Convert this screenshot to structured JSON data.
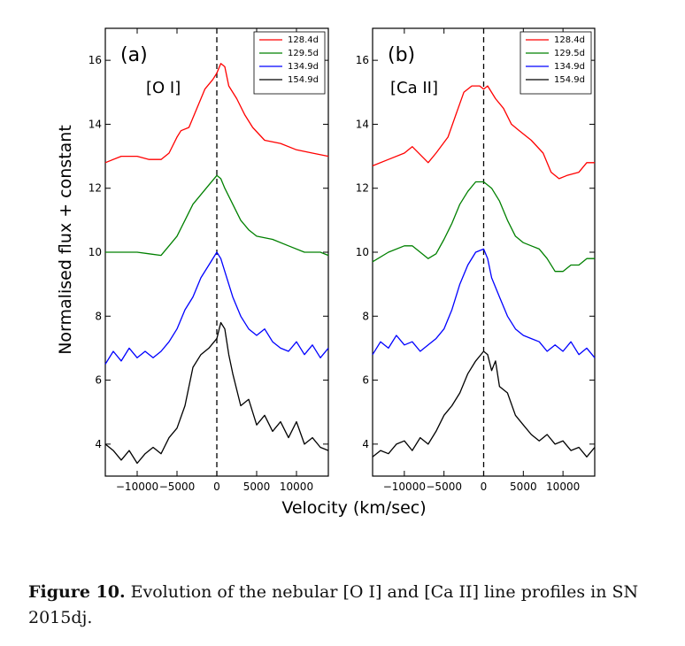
{
  "figure": {
    "ylabel": "Normalised flux + constant",
    "xlabel": "Velocity (km/sec)"
  },
  "caption": {
    "label": "Figure 10.",
    "text": "Evolution of the nebular [O I] and [Ca II] line profiles in SN 2015dj."
  },
  "chart_data": [
    {
      "type": "line",
      "panel_label": "(a)",
      "annotation": "[O I]",
      "xlim": [
        -14000,
        14000
      ],
      "ylim": [
        3,
        17
      ],
      "xticks": [
        -10000,
        -5000,
        0,
        5000,
        10000
      ],
      "xtick_labels": [
        "−10000",
        "−5000",
        "0",
        "5000",
        "10000"
      ],
      "yticks": [
        4,
        6,
        8,
        10,
        12,
        14,
        16
      ],
      "ytick_labels": [
        "4",
        "6",
        "8",
        "10",
        "12",
        "14",
        "16"
      ],
      "vline_x": 0,
      "legend_position": "top-right",
      "series": [
        {
          "name": "128.4d",
          "color": "#ff0000",
          "x": [
            -14000,
            -12000,
            -10000,
            -8500,
            -7000,
            -6000,
            -5000,
            -4500,
            -3500,
            -2500,
            -1500,
            -500,
            0,
            500,
            1000,
            1500,
            2500,
            3500,
            4500,
            6000,
            8000,
            10000,
            12000,
            14000
          ],
          "y": [
            12.8,
            13.0,
            13.0,
            12.9,
            12.9,
            13.1,
            13.6,
            13.8,
            13.9,
            14.5,
            15.1,
            15.4,
            15.6,
            15.9,
            15.8,
            15.2,
            14.8,
            14.3,
            13.9,
            13.5,
            13.4,
            13.2,
            13.1,
            13.0
          ]
        },
        {
          "name": "129.5d",
          "color": "#008000",
          "x": [
            -14000,
            -12000,
            -10000,
            -8500,
            -7000,
            -6000,
            -5000,
            -4000,
            -3000,
            -2000,
            -1000,
            0,
            500,
            1000,
            2000,
            3000,
            4000,
            5000,
            7000,
            9000,
            11000,
            13000,
            14000
          ],
          "y": [
            10.0,
            10.0,
            10.0,
            9.95,
            9.9,
            10.2,
            10.5,
            11.0,
            11.5,
            11.8,
            12.1,
            12.4,
            12.3,
            12.0,
            11.5,
            11.0,
            10.7,
            10.5,
            10.4,
            10.2,
            10.0,
            10.0,
            9.9
          ]
        },
        {
          "name": "134.9d",
          "color": "#0000ff",
          "x": [
            -14000,
            -13000,
            -12000,
            -11000,
            -10000,
            -9000,
            -8000,
            -7000,
            -6000,
            -5000,
            -4000,
            -3000,
            -2000,
            -1000,
            0,
            500,
            1000,
            2000,
            3000,
            4000,
            5000,
            6000,
            7000,
            8000,
            9000,
            10000,
            11000,
            12000,
            13000,
            14000
          ],
          "y": [
            6.5,
            6.9,
            6.6,
            7.0,
            6.7,
            6.9,
            6.7,
            6.9,
            7.2,
            7.6,
            8.2,
            8.6,
            9.2,
            9.6,
            10.0,
            9.8,
            9.4,
            8.6,
            8.0,
            7.6,
            7.4,
            7.6,
            7.2,
            7.0,
            6.9,
            7.2,
            6.8,
            7.1,
            6.7,
            7.0
          ]
        },
        {
          "name": "154.9d",
          "color": "#000000",
          "x": [
            -14000,
            -13000,
            -12000,
            -11000,
            -10000,
            -9000,
            -8000,
            -7000,
            -6000,
            -5000,
            -4000,
            -3000,
            -2000,
            -1000,
            0,
            500,
            1000,
            1500,
            2000,
            3000,
            4000,
            5000,
            6000,
            7000,
            8000,
            9000,
            10000,
            11000,
            12000,
            13000,
            14000
          ],
          "y": [
            4.0,
            3.8,
            3.5,
            3.8,
            3.4,
            3.7,
            3.9,
            3.7,
            4.2,
            4.5,
            5.2,
            6.4,
            6.8,
            7.0,
            7.3,
            7.8,
            7.6,
            6.8,
            6.2,
            5.2,
            5.4,
            4.6,
            4.9,
            4.4,
            4.7,
            4.2,
            4.7,
            4.0,
            4.2,
            3.9,
            3.8
          ]
        }
      ]
    },
    {
      "type": "line",
      "panel_label": "(b)",
      "annotation": "[Ca II]",
      "xlim": [
        -14000,
        14000
      ],
      "ylim": [
        3,
        17
      ],
      "xticks": [
        -10000,
        -5000,
        0,
        5000,
        10000
      ],
      "xtick_labels": [
        "−10000",
        "−5000",
        "0",
        "5000",
        "10000"
      ],
      "yticks": [
        4,
        6,
        8,
        10,
        12,
        14,
        16
      ],
      "ytick_labels": [
        "4",
        "6",
        "8",
        "10",
        "12",
        "14",
        "16"
      ],
      "vline_x": 0,
      "legend_position": "top-right",
      "series": [
        {
          "name": "128.4d",
          "color": "#ff0000",
          "x": [
            -14000,
            -12000,
            -10000,
            -9000,
            -7000,
            -6000,
            -4500,
            -3500,
            -2500,
            -1500,
            -500,
            0,
            500,
            1500,
            2500,
            3500,
            4500,
            6000,
            7500,
            8500,
            9500,
            10500,
            12000,
            13000,
            14000
          ],
          "y": [
            12.7,
            12.9,
            13.1,
            13.3,
            12.8,
            13.1,
            13.6,
            14.3,
            15.0,
            15.2,
            15.2,
            15.1,
            15.2,
            14.8,
            14.5,
            14.0,
            13.8,
            13.5,
            13.1,
            12.5,
            12.3,
            12.4,
            12.5,
            12.8,
            12.8
          ]
        },
        {
          "name": "129.5d",
          "color": "#008000",
          "x": [
            -14000,
            -12000,
            -10000,
            -9000,
            -7000,
            -6000,
            -5000,
            -4000,
            -3000,
            -2000,
            -1000,
            0,
            1000,
            2000,
            3000,
            4000,
            5000,
            6000,
            7000,
            8000,
            9000,
            10000,
            11000,
            12000,
            13000,
            14000
          ],
          "y": [
            9.7,
            10.0,
            10.2,
            10.2,
            9.8,
            9.95,
            10.4,
            10.9,
            11.5,
            11.9,
            12.2,
            12.2,
            12.0,
            11.6,
            11.0,
            10.5,
            10.3,
            10.2,
            10.1,
            9.8,
            9.4,
            9.4,
            9.6,
            9.6,
            9.8,
            9.8
          ]
        },
        {
          "name": "134.9d",
          "color": "#0000ff",
          "x": [
            -14000,
            -13000,
            -12000,
            -11000,
            -10000,
            -9000,
            -8000,
            -7000,
            -6000,
            -5000,
            -4000,
            -3000,
            -2000,
            -1000,
            0,
            500,
            1000,
            2000,
            3000,
            4000,
            5000,
            6000,
            7000,
            8000,
            9000,
            10000,
            11000,
            12000,
            13000,
            14000
          ],
          "y": [
            6.8,
            7.2,
            7.0,
            7.4,
            7.1,
            7.2,
            6.9,
            7.1,
            7.3,
            7.6,
            8.2,
            9.0,
            9.6,
            10.0,
            10.1,
            9.8,
            9.2,
            8.6,
            8.0,
            7.6,
            7.4,
            7.3,
            7.2,
            6.9,
            7.1,
            6.9,
            7.2,
            6.8,
            7.0,
            6.7
          ]
        },
        {
          "name": "154.9d",
          "color": "#000000",
          "x": [
            -14000,
            -13000,
            -12000,
            -11000,
            -10000,
            -9000,
            -8000,
            -7000,
            -6000,
            -5000,
            -4000,
            -3000,
            -2000,
            -1000,
            0,
            500,
            1000,
            1500,
            2000,
            3000,
            4000,
            5000,
            6000,
            7000,
            8000,
            9000,
            10000,
            11000,
            12000,
            13000,
            14000
          ],
          "y": [
            3.6,
            3.8,
            3.7,
            4.0,
            4.1,
            3.8,
            4.2,
            4.0,
            4.4,
            4.9,
            5.2,
            5.6,
            6.2,
            6.6,
            6.9,
            6.8,
            6.3,
            6.6,
            5.8,
            5.6,
            4.9,
            4.6,
            4.3,
            4.1,
            4.3,
            4.0,
            4.1,
            3.8,
            3.9,
            3.6,
            3.9
          ]
        }
      ]
    }
  ]
}
